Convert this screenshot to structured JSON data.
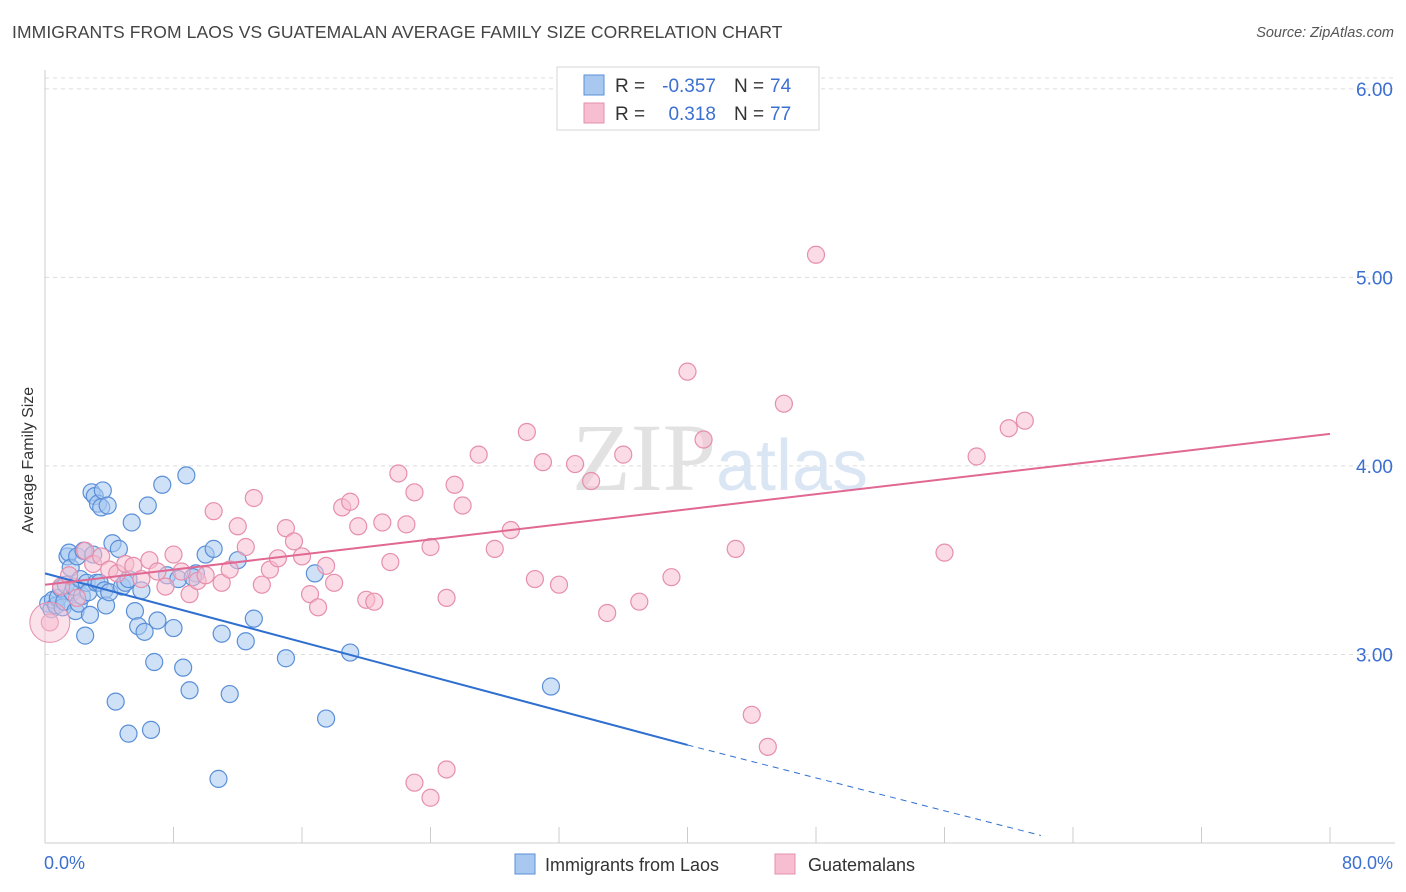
{
  "chart_data": {
    "type": "scatter",
    "title": "IMMIGRANTS FROM LAOS VS GUATEMALAN AVERAGE FAMILY SIZE CORRELATION CHART",
    "source": "Source: ZipAtlas.com",
    "xlabel": "",
    "ylabel": "Average Family Size",
    "xlim": [
      0,
      80
    ],
    "ylim": [
      2.0,
      6.1
    ],
    "x_tick_labels": [
      "0.0%",
      "80.0%"
    ],
    "y_ticks": [
      3.0,
      4.0,
      5.0,
      6.0
    ],
    "y_tick_labels": [
      "3.00",
      "4.00",
      "5.00",
      "6.00"
    ],
    "watermark": "ZIPatlas",
    "grid": true,
    "legend_position": "top-center",
    "legend": [
      {
        "name": "Immigrants from Laos",
        "r_label": "R =",
        "r_value": "-0.357",
        "n_label": "N =",
        "n_value": "74"
      },
      {
        "name": "Guatemalans",
        "r_label": "R =",
        "r_value": "0.318",
        "n_label": "N =",
        "n_value": "77"
      }
    ],
    "colors": {
      "laos_fill": "#a8c8f0",
      "laos_stroke": "#5a8fd8",
      "laos_line": "#2f6fd0",
      "guat_fill": "#f7bdd0",
      "guat_stroke": "#e68fac",
      "guat_line": "#e06893",
      "axis_text": "#3b6fd0",
      "grid": "#dcdcdc"
    },
    "series": [
      {
        "name": "Immigrants from Laos",
        "trend": {
          "x0": 0,
          "y0": 3.43,
          "x1": 40,
          "y1": 2.52,
          "dash_x1": 62,
          "dash_y1": 2.04
        },
        "points": [
          [
            0.2,
            3.27
          ],
          [
            0.4,
            3.24
          ],
          [
            0.5,
            3.29
          ],
          [
            0.7,
            3.26
          ],
          [
            0.8,
            3.3
          ],
          [
            1.0,
            3.35
          ],
          [
            1.1,
            3.25
          ],
          [
            1.2,
            3.28
          ],
          [
            1.3,
            3.37
          ],
          [
            1.4,
            3.52
          ],
          [
            1.5,
            3.54
          ],
          [
            1.6,
            3.46
          ],
          [
            1.7,
            3.33
          ],
          [
            1.8,
            3.36
          ],
          [
            1.9,
            3.23
          ],
          [
            2.0,
            3.52
          ],
          [
            2.1,
            3.27
          ],
          [
            2.2,
            3.4
          ],
          [
            2.3,
            3.31
          ],
          [
            2.4,
            3.55
          ],
          [
            2.5,
            3.1
          ],
          [
            2.6,
            3.38
          ],
          [
            2.7,
            3.33
          ],
          [
            2.8,
            3.21
          ],
          [
            2.9,
            3.86
          ],
          [
            3.0,
            3.53
          ],
          [
            3.1,
            3.84
          ],
          [
            3.2,
            3.38
          ],
          [
            3.3,
            3.8
          ],
          [
            3.4,
            3.38
          ],
          [
            3.5,
            3.78
          ],
          [
            3.6,
            3.87
          ],
          [
            3.7,
            3.34
          ],
          [
            3.8,
            3.26
          ],
          [
            3.9,
            3.79
          ],
          [
            4.0,
            3.33
          ],
          [
            4.2,
            3.59
          ],
          [
            4.4,
            2.75
          ],
          [
            4.6,
            3.56
          ],
          [
            4.8,
            3.36
          ],
          [
            5.0,
            3.38
          ],
          [
            5.2,
            3.4
          ],
          [
            5.4,
            3.7
          ],
          [
            5.6,
            3.23
          ],
          [
            5.8,
            3.15
          ],
          [
            6.0,
            3.34
          ],
          [
            6.2,
            3.12
          ],
          [
            6.4,
            3.79
          ],
          [
            6.6,
            2.6
          ],
          [
            7.0,
            3.18
          ],
          [
            7.3,
            3.9
          ],
          [
            7.6,
            3.42
          ],
          [
            8.0,
            3.14
          ],
          [
            8.3,
            3.4
          ],
          [
            8.6,
            2.93
          ],
          [
            9.0,
            2.81
          ],
          [
            9.4,
            3.43
          ],
          [
            10.0,
            3.53
          ],
          [
            10.5,
            3.56
          ],
          [
            11.0,
            3.11
          ],
          [
            11.5,
            2.79
          ],
          [
            12.0,
            3.5
          ],
          [
            12.5,
            3.07
          ],
          [
            13.0,
            3.19
          ],
          [
            5.2,
            2.58
          ],
          [
            6.8,
            2.96
          ],
          [
            8.8,
            3.95
          ],
          [
            9.2,
            3.41
          ],
          [
            10.8,
            2.34
          ],
          [
            15.0,
            2.98
          ],
          [
            16.8,
            3.43
          ],
          [
            17.5,
            2.66
          ],
          [
            19.0,
            3.01
          ],
          [
            31.5,
            2.83
          ]
        ]
      },
      {
        "name": "Guatemalans",
        "trend": {
          "x0": 0,
          "y0": 3.37,
          "x1": 80,
          "y1": 4.17
        },
        "points": [
          [
            0.3,
            3.17
          ],
          [
            1.0,
            3.36
          ],
          [
            1.5,
            3.42
          ],
          [
            2.0,
            3.3
          ],
          [
            2.5,
            3.55
          ],
          [
            3.0,
            3.48
          ],
          [
            3.5,
            3.52
          ],
          [
            4.0,
            3.45
          ],
          [
            4.5,
            3.43
          ],
          [
            5.0,
            3.48
          ],
          [
            5.5,
            3.47
          ],
          [
            6.0,
            3.4
          ],
          [
            6.5,
            3.5
          ],
          [
            7.0,
            3.44
          ],
          [
            7.5,
            3.36
          ],
          [
            8.0,
            3.53
          ],
          [
            8.5,
            3.44
          ],
          [
            9.0,
            3.32
          ],
          [
            9.5,
            3.39
          ],
          [
            10.0,
            3.42
          ],
          [
            10.5,
            3.76
          ],
          [
            11.0,
            3.38
          ],
          [
            11.5,
            3.45
          ],
          [
            12.0,
            3.68
          ],
          [
            12.5,
            3.57
          ],
          [
            13.0,
            3.83
          ],
          [
            13.5,
            3.37
          ],
          [
            14.0,
            3.45
          ],
          [
            14.5,
            3.51
          ],
          [
            15.0,
            3.67
          ],
          [
            15.5,
            3.6
          ],
          [
            16.0,
            3.52
          ],
          [
            16.5,
            3.32
          ],
          [
            17.0,
            3.25
          ],
          [
            17.5,
            3.47
          ],
          [
            18.0,
            3.38
          ],
          [
            18.5,
            3.78
          ],
          [
            19.0,
            3.81
          ],
          [
            19.5,
            3.68
          ],
          [
            20.0,
            3.29
          ],
          [
            20.5,
            3.28
          ],
          [
            21.0,
            3.7
          ],
          [
            21.5,
            3.49
          ],
          [
            22.0,
            3.96
          ],
          [
            22.5,
            3.69
          ],
          [
            23.0,
            3.86
          ],
          [
            24.0,
            3.57
          ],
          [
            25.0,
            3.3
          ],
          [
            25.5,
            3.9
          ],
          [
            26.0,
            3.79
          ],
          [
            27.0,
            4.06
          ],
          [
            28.0,
            3.56
          ],
          [
            29.0,
            3.66
          ],
          [
            30.0,
            4.18
          ],
          [
            30.5,
            3.4
          ],
          [
            31.0,
            4.02
          ],
          [
            32.0,
            3.37
          ],
          [
            33.0,
            4.01
          ],
          [
            34.0,
            3.92
          ],
          [
            35.0,
            3.22
          ],
          [
            36.0,
            4.06
          ],
          [
            37.0,
            3.28
          ],
          [
            39.0,
            3.41
          ],
          [
            40.0,
            4.5
          ],
          [
            41.0,
            4.14
          ],
          [
            43.0,
            3.56
          ],
          [
            44.0,
            2.68
          ],
          [
            45.0,
            2.51
          ],
          [
            46.0,
            4.33
          ],
          [
            48.0,
            5.12
          ],
          [
            56.0,
            3.54
          ],
          [
            58.0,
            4.05
          ],
          [
            60.0,
            4.2
          ],
          [
            61.0,
            4.24
          ],
          [
            23.0,
            2.32
          ],
          [
            24.0,
            2.24
          ],
          [
            25.0,
            2.39
          ]
        ]
      }
    ]
  }
}
